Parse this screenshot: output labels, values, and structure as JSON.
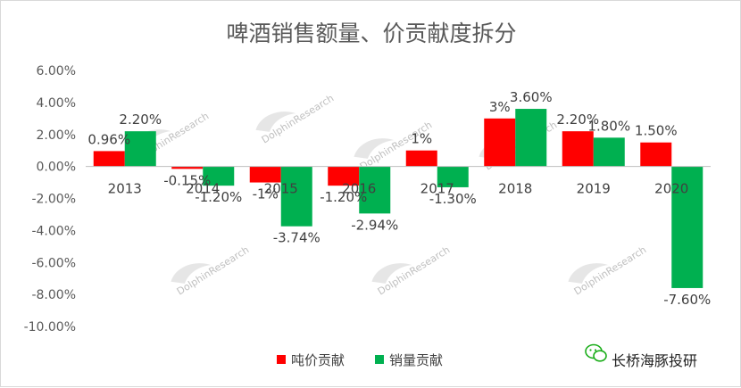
{
  "chart_data": {
    "type": "bar",
    "title": "啤酒销售额量、价贡献度拆分",
    "categories": [
      "2013",
      "2014",
      "2015",
      "2016",
      "2017",
      "2018",
      "2019",
      "2020"
    ],
    "series": [
      {
        "name": "吨价贡献",
        "color": "#ff0000",
        "values": [
          0.96,
          -0.15,
          -1.0,
          -1.2,
          1.0,
          3.0,
          2.2,
          1.5
        ],
        "labels": [
          "0.96%",
          "-0.15%",
          "-1%",
          "-1.20%",
          "1%",
          "3%",
          "2.20%",
          "1.50%"
        ]
      },
      {
        "name": "销量贡献",
        "color": "#00b050",
        "values": [
          2.2,
          -1.2,
          -3.74,
          -2.94,
          -1.3,
          3.6,
          1.8,
          -7.6
        ],
        "labels": [
          "2.20%",
          "-1.20%",
          "-3.74%",
          "-2.94%",
          "-1.30%",
          "3.60%",
          "1.80%",
          "-7.60%"
        ]
      }
    ],
    "ylim": [
      -10,
      6
    ],
    "yticks": [
      6,
      4,
      2,
      0,
      -2,
      -4,
      -6,
      -8,
      -10
    ],
    "ytick_labels": [
      "6.00%",
      "4.00%",
      "2.00%",
      "0.00%",
      "-2.00%",
      "-4.00%",
      "-6.00%",
      "-8.00%",
      "-10.00%"
    ],
    "grid": false,
    "legend": "bottom"
  },
  "watermark": {
    "text": "DolphinResearch",
    "icon": "dolphin-watermark-icon"
  },
  "brand": {
    "text": "长桥海豚投研",
    "icon": "wechat-icon",
    "color": "#1aad19"
  }
}
